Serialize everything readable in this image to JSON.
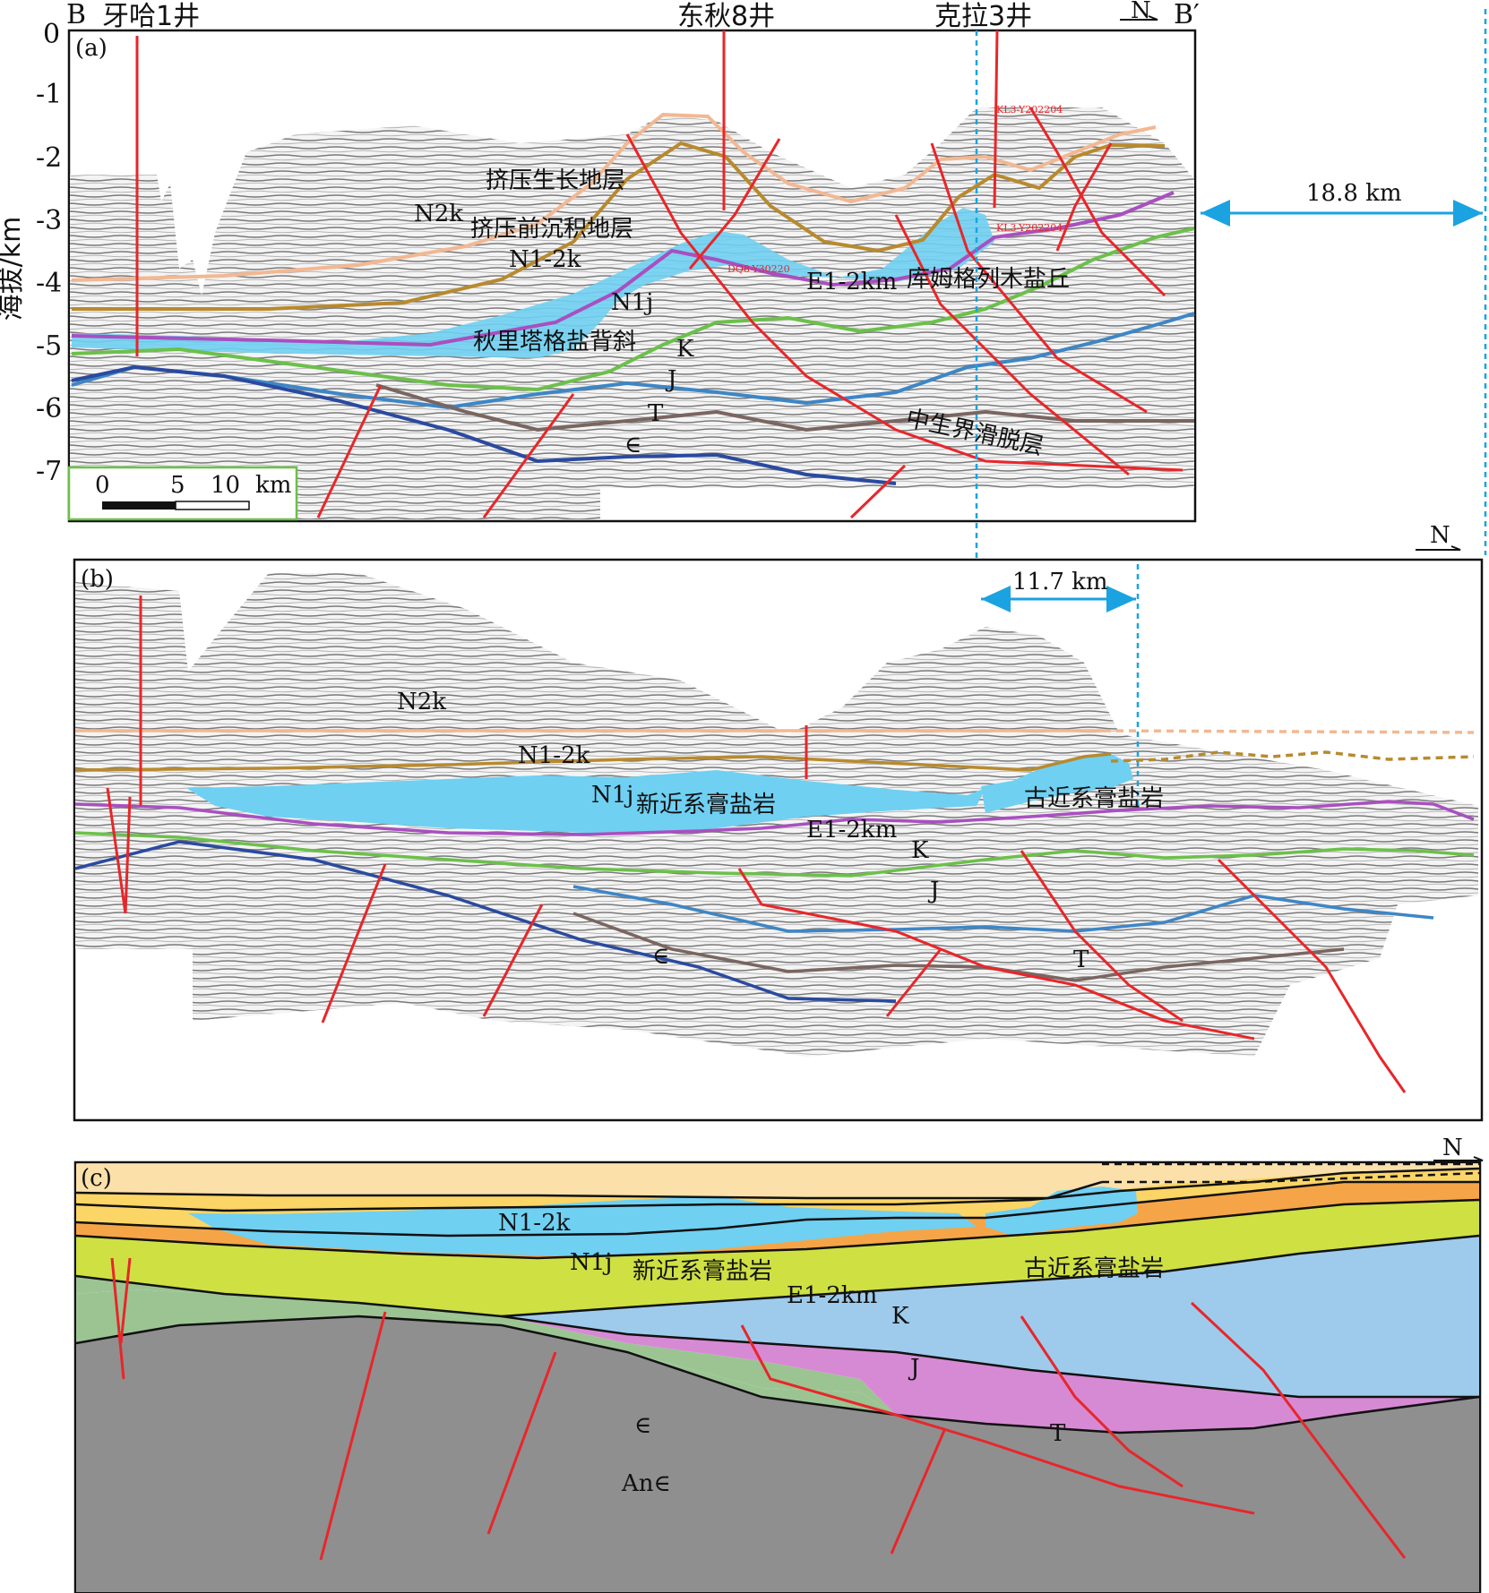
{
  "header": {
    "start_point": "B",
    "end_point": "B′",
    "north": "N",
    "wells": [
      "牙哈1井",
      "东秋8井",
      "克拉3井"
    ]
  },
  "axis": {
    "ylabel": "海拔/km",
    "ticks": [
      "0",
      "-1",
      "-2",
      "-3",
      "-4",
      "-5",
      "-6",
      "-7"
    ]
  },
  "scale_bar": {
    "labels": [
      "0",
      "5",
      "10",
      "km"
    ]
  },
  "panel_a": {
    "label": "(a)",
    "shortening": "18.8 km",
    "annotations": [
      "挤压生长地层",
      "挤压前沉积地层",
      "N2k",
      "N1-2k",
      "N1j",
      "E1-2km",
      "秋里塔格盐背斜",
      "库姆格列木盐丘",
      "K",
      "J",
      "T",
      "∈",
      "中生界滑脱层"
    ],
    "well_tags": [
      "KL3-Y202204",
      "KL3-Y202204",
      "DQ8-Y30220"
    ]
  },
  "panel_b": {
    "label": "(b)",
    "shortening": "11.7 km",
    "annotations": [
      "N2k",
      "N1-2k",
      "N1j",
      "新近系膏盐岩",
      "古近系膏盐岩",
      "E1-2km",
      "K",
      "J",
      "T",
      "∈"
    ]
  },
  "panel_c": {
    "label": "(c)",
    "annotations": [
      "N1-2k",
      "N1j",
      "新近系膏盐岩",
      "古近系膏盐岩",
      "E1-2km",
      "K",
      "J",
      "T",
      "∈",
      "An∈"
    ]
  },
  "colors": {
    "salt": "#6fd0f2",
    "dimension": "#1aa3e0",
    "fault": "#e8262a",
    "n2k_horizon": "#f2b893",
    "n12k_horizon": "#b88a2e",
    "e_horizon": "#a94fc0",
    "k_horizon": "#6cc04a",
    "j_horizon": "#3d86c6",
    "t_horizon": "#7a6560",
    "cambrian_horizon": "#2a4aa0",
    "layer_n12k": "#fbe0aa",
    "layer_n1j": "#fbd566",
    "layer_e": "#f5a547",
    "layer_k": "#cfe043",
    "layer_j": "#9ecbeb",
    "layer_t": "#d68ad4",
    "layer_cambrian": "#9cc493",
    "layer_basement": "#8f8f8f"
  }
}
